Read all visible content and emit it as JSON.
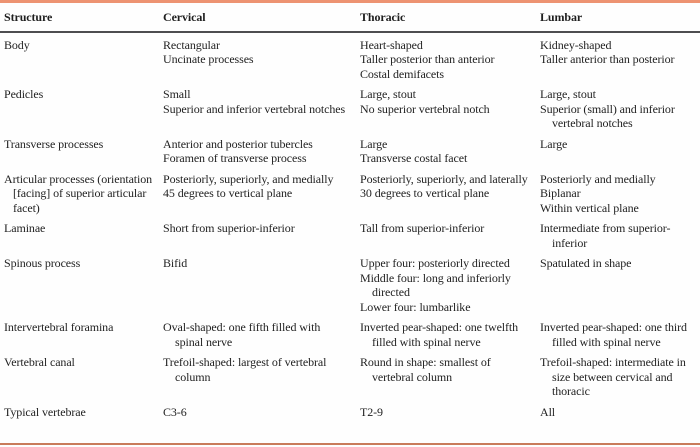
{
  "table": {
    "columns": [
      "Structure",
      "Cervical",
      "Thoracic",
      "Lumbar"
    ],
    "rows": [
      {
        "structure": "Body",
        "cervical": [
          "Rectangular",
          "Uncinate processes"
        ],
        "thoracic": [
          "Heart-shaped",
          "Taller posterior than anterior",
          "Costal demifacets"
        ],
        "lumbar": [
          "Kidney-shaped",
          "Taller anterior than posterior"
        ]
      },
      {
        "structure": "Pedicles",
        "cervical": [
          "Small",
          "Superior and inferior vertebral notches"
        ],
        "thoracic": [
          "Large, stout",
          "No superior vertebral notch"
        ],
        "lumbar": [
          "Large, stout",
          "Superior (small) and inferior vertebral notches"
        ]
      },
      {
        "structure": "Transverse processes",
        "cervical": [
          "Anterior and posterior tubercles",
          "Foramen of transverse process"
        ],
        "thoracic": [
          "Large",
          "Transverse costal facet"
        ],
        "lumbar": [
          "Large"
        ]
      },
      {
        "structure": "Articular processes (orientation [facing] of superior articular facet)",
        "cervical": [
          "Posteriorly, superiorly, and medially",
          "45 degrees to vertical plane"
        ],
        "thoracic": [
          "Posteriorly, superiorly, and laterally",
          "30 degrees to vertical plane"
        ],
        "lumbar": [
          "Posteriorly and medially",
          "Biplanar",
          "Within vertical plane"
        ]
      },
      {
        "structure": "Laminae",
        "cervical": [
          "Short from superior-inferior"
        ],
        "thoracic": [
          "Tall from superior-inferior"
        ],
        "lumbar": [
          "Intermediate from superior-inferior"
        ]
      },
      {
        "structure": "Spinous process",
        "cervical": [
          "Bifid"
        ],
        "thoracic": [
          "Upper four: posteriorly directed",
          "Middle four: long and inferiorly directed",
          "Lower four: lumbarlike"
        ],
        "lumbar": [
          "Spatulated in shape"
        ]
      },
      {
        "structure": "Intervertebral foramina",
        "cervical": [
          "Oval-shaped: one fifth filled with spinal nerve"
        ],
        "thoracic": [
          "Inverted pear-shaped: one twelfth filled with spinal nerve"
        ],
        "lumbar": [
          "Inverted pear-shaped: one third filled with spinal nerve"
        ]
      },
      {
        "structure": "Vertebral canal",
        "cervical": [
          "Trefoil-shaped: largest of vertebral column"
        ],
        "thoracic": [
          "Round in shape: smallest of vertebral column"
        ],
        "lumbar": [
          "Trefoil-shaped: intermediate in size between cervical and thoracic"
        ]
      },
      {
        "structure": "Typical vertebrae",
        "cervical": [
          "C3-6"
        ],
        "thoracic": [
          "T2-9"
        ],
        "lumbar": [
          "All"
        ]
      }
    ]
  },
  "colors": {
    "top_rule": "#ed9372",
    "header_rule": "#4e4e50",
    "bottom_rule": "#c97b5b",
    "text": "#1f1f1f"
  }
}
